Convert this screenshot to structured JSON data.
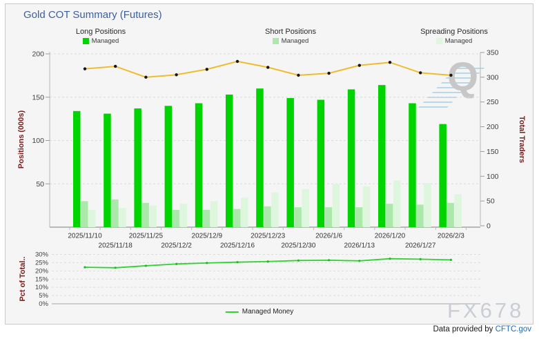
{
  "title": "Gold COT Summary (Futures)",
  "legend": {
    "long": {
      "title": "Long Positions",
      "item": "Managed",
      "color": "#00d400"
    },
    "short": {
      "title": "Short Positions",
      "item": "Managed",
      "color": "#abe9ab"
    },
    "spreading": {
      "title": "Spreading Positions",
      "item": "Managed",
      "color": "#def6de"
    }
  },
  "watermarks": {
    "q": "Q",
    "fx": "FX678"
  },
  "footer": {
    "prefix": "Data provided by ",
    "link": "CFTC.gov"
  },
  "colors": {
    "title_blue": "#3a5f9e",
    "axis_title_maroon": "#7b1a1a",
    "grid": "#dcdcdc",
    "axis_line": "#b8b8b8",
    "tick_text": "#404040",
    "total_traders_line": "#eebc2d",
    "total_traders_marker": "#151515",
    "pct_line": "#2fd32f",
    "pct_marker": "#28b428"
  },
  "chart_data": [
    {
      "type": "bar",
      "title": "Positions panel",
      "categories": [
        "2025/11/10",
        "2025/11/18",
        "2025/11/25",
        "2025/12/2",
        "2025/12/9",
        "2025/12/16",
        "2025/12/23",
        "2025/12/30",
        "2026/1/6",
        "2026/1/13",
        "2026/1/20",
        "2026/1/27",
        "2026/2/3"
      ],
      "ylabel_left": "Positions (000s)",
      "ylabel_right": "Total Traders",
      "ylim_left": [
        0,
        200
      ],
      "yticks_left": [
        50,
        100,
        150,
        200
      ],
      "ylim_right": [
        0,
        350
      ],
      "yticks_right": [
        0,
        50,
        100,
        150,
        200,
        250,
        300,
        350
      ],
      "grid": true,
      "series": [
        {
          "name": "Managed Long",
          "type": "bar",
          "axis": "left",
          "color": "#00d400",
          "values": [
            134,
            131,
            137,
            140,
            143,
            153,
            160,
            149,
            147,
            159,
            164,
            143,
            119
          ]
        },
        {
          "name": "Managed Short",
          "type": "bar",
          "axis": "left",
          "color": "#abe9ab",
          "values": [
            30,
            32,
            28,
            20,
            20,
            21,
            24,
            23,
            23,
            23,
            27,
            26,
            28
          ]
        },
        {
          "name": "Managed Spreading",
          "type": "bar",
          "axis": "left",
          "color": "#def6de",
          "values": [
            20,
            22,
            25,
            27,
            30,
            34,
            40,
            44,
            50,
            47,
            54,
            51,
            38
          ]
        },
        {
          "name": "Total Traders",
          "type": "line",
          "axis": "right",
          "color": "#eebc2d",
          "values": [
            317,
            322,
            300,
            305,
            316,
            332,
            320,
            304,
            308,
            324,
            330,
            309,
            304
          ]
        }
      ]
    },
    {
      "type": "line",
      "title": "Pct of Total panel",
      "categories": [
        "2025/11/10",
        "2025/11/18",
        "2025/11/25",
        "2025/12/2",
        "2025/12/9",
        "2025/12/16",
        "2025/12/23",
        "2025/12/30",
        "2026/1/6",
        "2026/1/13",
        "2026/1/20",
        "2026/1/27",
        "2026/2/3"
      ],
      "ylabel": "Pct of Total..",
      "ylim": [
        0,
        30
      ],
      "yticks": [
        0,
        5,
        10,
        15,
        20,
        25,
        30
      ],
      "ytick_suffix": "%",
      "grid": true,
      "legend": "Managed Money",
      "legend_position": "bottom-center",
      "series": [
        {
          "name": "Managed Money",
          "type": "line",
          "color": "#2fd32f",
          "values": [
            22.2,
            21.9,
            23.1,
            24.2,
            24.8,
            25.3,
            25.7,
            26.3,
            26.5,
            26.1,
            27.4,
            27.1,
            26.7
          ]
        }
      ]
    }
  ]
}
